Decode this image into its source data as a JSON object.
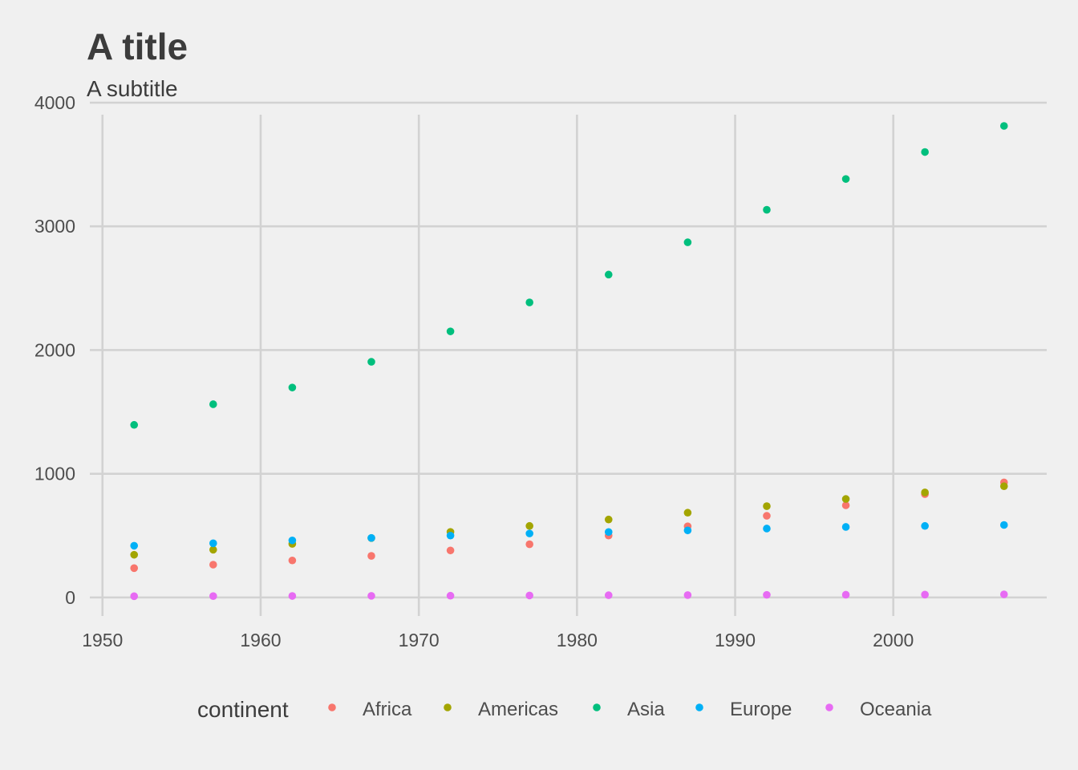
{
  "chart_data": {
    "type": "scatter",
    "title": "A title",
    "subtitle": "A subtitle",
    "xlabel": "",
    "ylabel": "",
    "xlim": [
      1949.2,
      2009.7
    ],
    "ylim": [
      -150,
      4000
    ],
    "x_ticks": [
      1950,
      1960,
      1970,
      1980,
      1990,
      2000
    ],
    "y_ticks": [
      0,
      1000,
      2000,
      3000,
      4000
    ],
    "grid": true,
    "legend": {
      "title": "continent",
      "position": "bottom"
    },
    "x": [
      1952,
      1957,
      1962,
      1967,
      1972,
      1977,
      1982,
      1987,
      1992,
      1997,
      2002,
      2007
    ],
    "series": [
      {
        "name": "Africa",
        "color": "#F8766D",
        "values": [
          237,
          265,
          299,
          336,
          380,
          430,
          500,
          575,
          660,
          745,
          835,
          930
        ]
      },
      {
        "name": "Americas",
        "color": "#A3A500",
        "values": [
          345,
          386,
          433,
          480,
          530,
          578,
          630,
          685,
          738,
          796,
          849,
          899
        ]
      },
      {
        "name": "Asia",
        "color": "#00BF7D",
        "values": [
          1395,
          1562,
          1697,
          1905,
          2151,
          2385,
          2610,
          2871,
          3134,
          3383,
          3601,
          3812
        ]
      },
      {
        "name": "Europe",
        "color": "#00B0F6",
        "values": [
          418,
          438,
          461,
          481,
          500,
          517,
          529,
          542,
          557,
          570,
          578,
          586
        ]
      },
      {
        "name": "Oceania",
        "color": "#E76BF3",
        "values": [
          10,
          11,
          12,
          13,
          14,
          16,
          18,
          19,
          21,
          22,
          23,
          25
        ]
      }
    ]
  }
}
